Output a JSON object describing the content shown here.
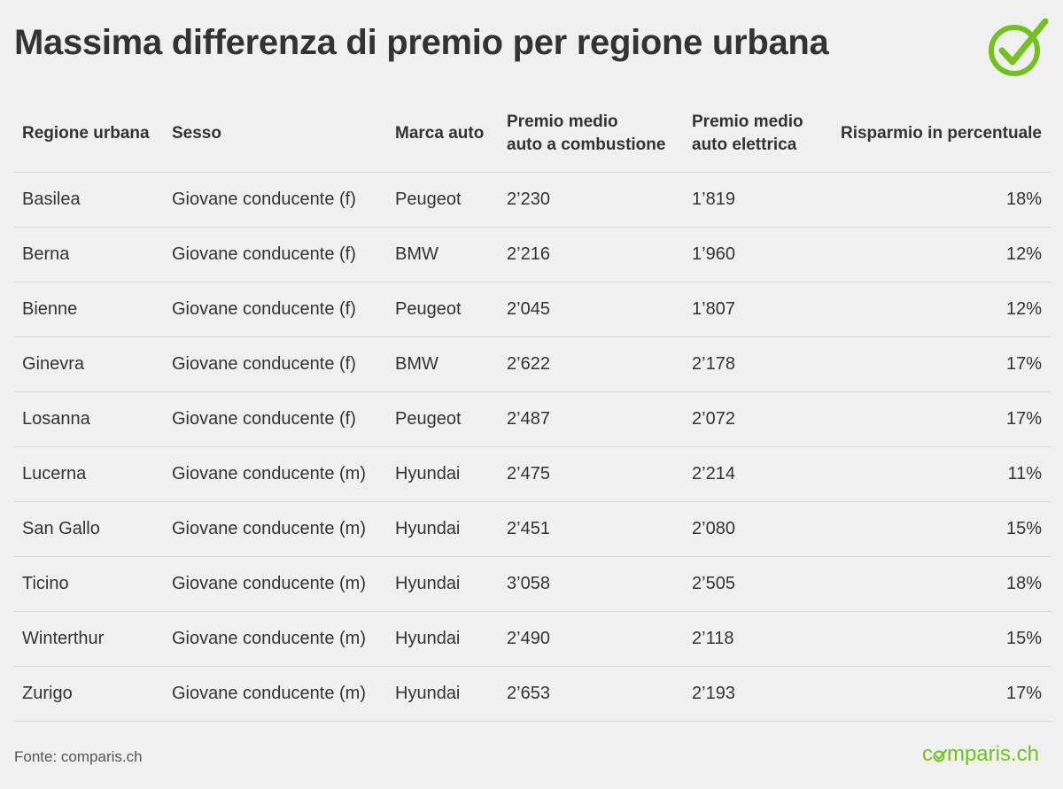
{
  "title": "Massima differenza di premio per regione urbana",
  "logo": {
    "icon": "check-circle-icon",
    "color": "#74c11d"
  },
  "chart_data": {
    "type": "table",
    "columns": [
      {
        "label": "Regione urbana"
      },
      {
        "label": "Sesso"
      },
      {
        "label": "Marca auto"
      },
      {
        "label1": "Premio medio",
        "label2": "auto a combustione"
      },
      {
        "label1": "Premio medio",
        "label2": "auto elettrica"
      },
      {
        "label": "Risparmio in percentuale"
      }
    ],
    "rows": [
      {
        "regione": "Basilea",
        "sesso": "Giovane conducente (f)",
        "marca": "Peugeot",
        "premio_combustione": "2’230",
        "premio_elettrica": "1’819",
        "risparmio": "18%"
      },
      {
        "regione": "Berna",
        "sesso": "Giovane conducente (f)",
        "marca": "BMW",
        "premio_combustione": "2’216",
        "premio_elettrica": "1’960",
        "risparmio": "12%"
      },
      {
        "regione": "Bienne",
        "sesso": "Giovane conducente (f)",
        "marca": "Peugeot",
        "premio_combustione": "2’045",
        "premio_elettrica": "1’807",
        "risparmio": "12%"
      },
      {
        "regione": "Ginevra",
        "sesso": "Giovane conducente (f)",
        "marca": "BMW",
        "premio_combustione": "2’622",
        "premio_elettrica": "2’178",
        "risparmio": "17%"
      },
      {
        "regione": "Losanna",
        "sesso": "Giovane conducente (f)",
        "marca": "Peugeot",
        "premio_combustione": "2’487",
        "premio_elettrica": "2’072",
        "risparmio": "17%"
      },
      {
        "regione": "Lucerna",
        "sesso": "Giovane conducente (m)",
        "marca": "Hyundai",
        "premio_combustione": "2’475",
        "premio_elettrica": "2’214",
        "risparmio": "11%"
      },
      {
        "regione": "San Gallo",
        "sesso": "Giovane conducente (m)",
        "marca": "Hyundai",
        "premio_combustione": "2’451",
        "premio_elettrica": "2’080",
        "risparmio": "15%"
      },
      {
        "regione": "Ticino",
        "sesso": "Giovane conducente (m)",
        "marca": "Hyundai",
        "premio_combustione": "3’058",
        "premio_elettrica": "2’505",
        "risparmio": "18%"
      },
      {
        "regione": "Winterthur",
        "sesso": "Giovane conducente (m)",
        "marca": "Hyundai",
        "premio_combustione": "2’490",
        "premio_elettrica": "2’118",
        "risparmio": "15%"
      },
      {
        "regione": "Zurigo",
        "sesso": "Giovane conducente (m)",
        "marca": "Hyundai",
        "premio_combustione": "2’653",
        "premio_elettrica": "2’193",
        "risparmio": "17%"
      }
    ]
  },
  "footer": {
    "source": "Fonte: comparis.ch",
    "brand_prefix": "c",
    "brand_suffix": "mparis.ch",
    "brand_color": "#74c11d"
  }
}
